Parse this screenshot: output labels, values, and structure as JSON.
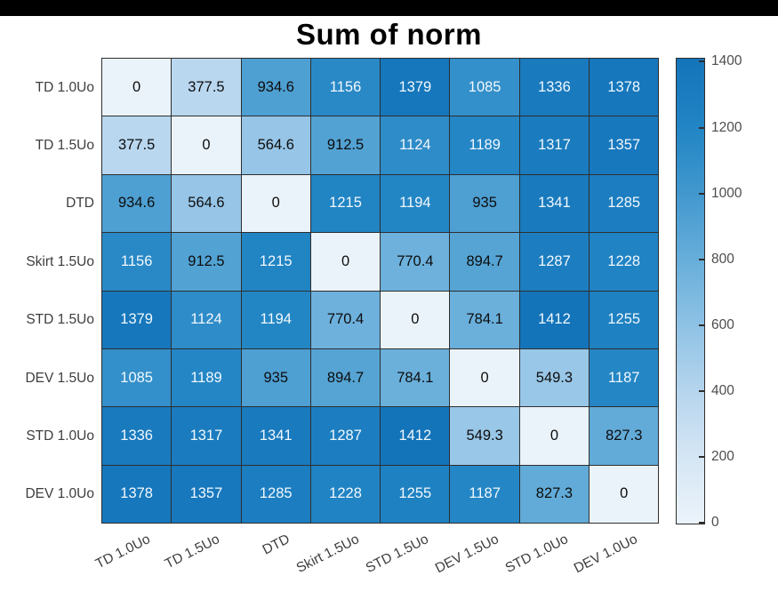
{
  "title": "Sum of norm",
  "colors": {
    "top_bar": "#000000",
    "background": "#ffffff",
    "grid_line": "#2e2e2e",
    "axis_label": "#3d3d3d",
    "tick_label": "#4d4d4d",
    "title_color": "#000000",
    "cell_text_dark": "#0d0d0d",
    "cell_text_light": "#f2f8fd",
    "colormap_min": "#ebf3fa",
    "colormap_max": "#1474ba"
  },
  "chart_data": {
    "type": "heatmap",
    "title": "Sum of norm",
    "row_labels": [
      "TD 1.0Uo",
      "TD 1.5Uo",
      "DTD",
      "Skirt 1.5Uo",
      "STD 1.5Uo",
      "DEV 1.5Uo",
      "STD 1.0Uo",
      "DEV 1.0Uo"
    ],
    "col_labels": [
      "TD 1.0Uo",
      "TD 1.5Uo",
      "DTD",
      "Skirt 1.5Uo",
      "STD 1.5Uo",
      "DEV 1.5Uo",
      "STD 1.0Uo",
      "DEV 1.0Uo"
    ],
    "matrix": [
      [
        0,
        377.5,
        934.6,
        1156,
        1379,
        1085,
        1336,
        1378
      ],
      [
        377.5,
        0,
        564.6,
        912.5,
        1124,
        1189,
        1317,
        1357
      ],
      [
        934.6,
        564.6,
        0,
        1215,
        1194,
        935,
        1341,
        1285
      ],
      [
        1156,
        912.5,
        1215,
        0,
        770.4,
        894.7,
        1287,
        1228
      ],
      [
        1379,
        1124,
        1194,
        770.4,
        0,
        784.1,
        1412,
        1255
      ],
      [
        1085,
        1189,
        935,
        894.7,
        784.1,
        0,
        549.3,
        1187
      ],
      [
        1336,
        1317,
        1341,
        1287,
        1412,
        549.3,
        0,
        827.3
      ],
      [
        1378,
        1357,
        1285,
        1228,
        1255,
        1187,
        827.3,
        0
      ]
    ],
    "vmin": 0,
    "vmax": 1412,
    "colorbar_ticks": [
      0,
      200,
      400,
      600,
      800,
      1000,
      1200,
      1400
    ],
    "colormap_stops": [
      {
        "value": 0,
        "color": "#ebf3fa"
      },
      {
        "value": 200,
        "color": "#d5e6f4"
      },
      {
        "value": 400,
        "color": "#b6d5ee"
      },
      {
        "value": 600,
        "color": "#8fc2e5"
      },
      {
        "value": 800,
        "color": "#67aeda"
      },
      {
        "value": 1000,
        "color": "#4298ce"
      },
      {
        "value": 1200,
        "color": "#2285c4"
      },
      {
        "value": 1412,
        "color": "#1474ba"
      }
    ],
    "text_color_threshold": 1000,
    "legend_position": "right",
    "grid": true,
    "x_label_rotation_deg": -27
  }
}
